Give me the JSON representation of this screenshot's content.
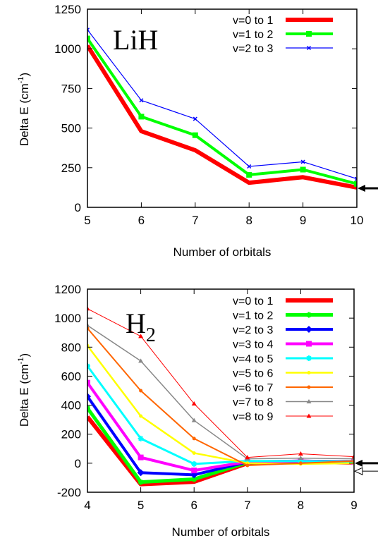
{
  "chart_data": [
    {
      "type": "line",
      "annotation": "LiH",
      "xlabel": "Number of orbitals",
      "ylabel": "Delta E (cm",
      "ylabel_sup": "-1",
      "ylabel_close": ")",
      "x": [
        5,
        6,
        7,
        8,
        9,
        10
      ],
      "xlim": [
        5,
        10
      ],
      "ylim": [
        0,
        1250
      ],
      "xticks": [
        "5",
        "6",
        "7",
        "8",
        "9",
        "10"
      ],
      "yticks": [
        "0",
        "250",
        "500",
        "750",
        "1000",
        "1250"
      ],
      "legend_position": "top-right",
      "series": [
        {
          "name": "v=0 to 1",
          "values": [
            1020,
            480,
            360,
            155,
            190,
            125
          ],
          "color": "#ff0000",
          "width": 6,
          "marker": "none"
        },
        {
          "name": "v=1 to 2",
          "values": [
            1065,
            572,
            455,
            205,
            238,
            148
          ],
          "color": "#00ff00",
          "width": 4,
          "marker": "square"
        },
        {
          "name": "v=2 to 3",
          "values": [
            1120,
            675,
            558,
            258,
            287,
            180
          ],
          "color": "#0000ff",
          "width": 1.2,
          "marker": "cross"
        }
      ],
      "arrows": [
        {
          "y": 120,
          "style": "thick"
        }
      ]
    },
    {
      "type": "line",
      "annotation": "H",
      "annotation_sub": "2",
      "xlabel": "Number of orbitals",
      "ylabel": "Delta E (cm",
      "ylabel_sup": "-1",
      "ylabel_close": ")",
      "x": [
        4,
        5,
        6,
        7,
        8,
        9
      ],
      "xlim": [
        4,
        9
      ],
      "ylim": [
        -200,
        1200
      ],
      "xticks": [
        "4",
        "5",
        "6",
        "7",
        "8",
        "9"
      ],
      "yticks": [
        "-200",
        "0",
        "200",
        "400",
        "600",
        "800",
        "1000",
        "1200"
      ],
      "legend_position": "top-right",
      "series": [
        {
          "name": "v=0 to 1",
          "values": [
            320,
            -145,
            -128,
            0,
            10,
            5
          ],
          "color": "#ff0000",
          "width": 6,
          "marker": "none"
        },
        {
          "name": "v=1 to 2",
          "values": [
            380,
            -130,
            -110,
            5,
            12,
            8
          ],
          "color": "#00ff00",
          "width": 5,
          "marker": "star"
        },
        {
          "name": "v=2 to 3",
          "values": [
            460,
            -65,
            -80,
            8,
            15,
            10
          ],
          "color": "#0000ff",
          "width": 4,
          "marker": "diamond"
        },
        {
          "name": "v=3 to 4",
          "values": [
            555,
            40,
            -50,
            10,
            15,
            8
          ],
          "color": "#ff00ff",
          "width": 4,
          "marker": "square"
        },
        {
          "name": "v=4 to 5",
          "values": [
            670,
            170,
            -5,
            15,
            15,
            10
          ],
          "color": "#00ffff",
          "width": 3,
          "marker": "star"
        },
        {
          "name": "v=5 to 6",
          "values": [
            810,
            325,
            70,
            0,
            -5,
            0
          ],
          "color": "#ffff00",
          "width": 2.5,
          "marker": "circle"
        },
        {
          "name": "v=6 to 7",
          "values": [
            930,
            500,
            170,
            -15,
            0,
            15
          ],
          "color": "#ff6600",
          "width": 2,
          "marker": "circle"
        },
        {
          "name": "v=7 to 8",
          "values": [
            950,
            705,
            295,
            30,
            35,
            30
          ],
          "color": "#888888",
          "width": 1.5,
          "marker": "triangle"
        },
        {
          "name": "v=8 to 9",
          "values": [
            1065,
            875,
            410,
            40,
            65,
            45
          ],
          "color": "#ff0000",
          "width": 1,
          "marker": "triangle"
        }
      ],
      "arrows": [
        {
          "y": 0,
          "style": "thick"
        },
        {
          "y": -55,
          "style": "hollow"
        }
      ]
    }
  ]
}
